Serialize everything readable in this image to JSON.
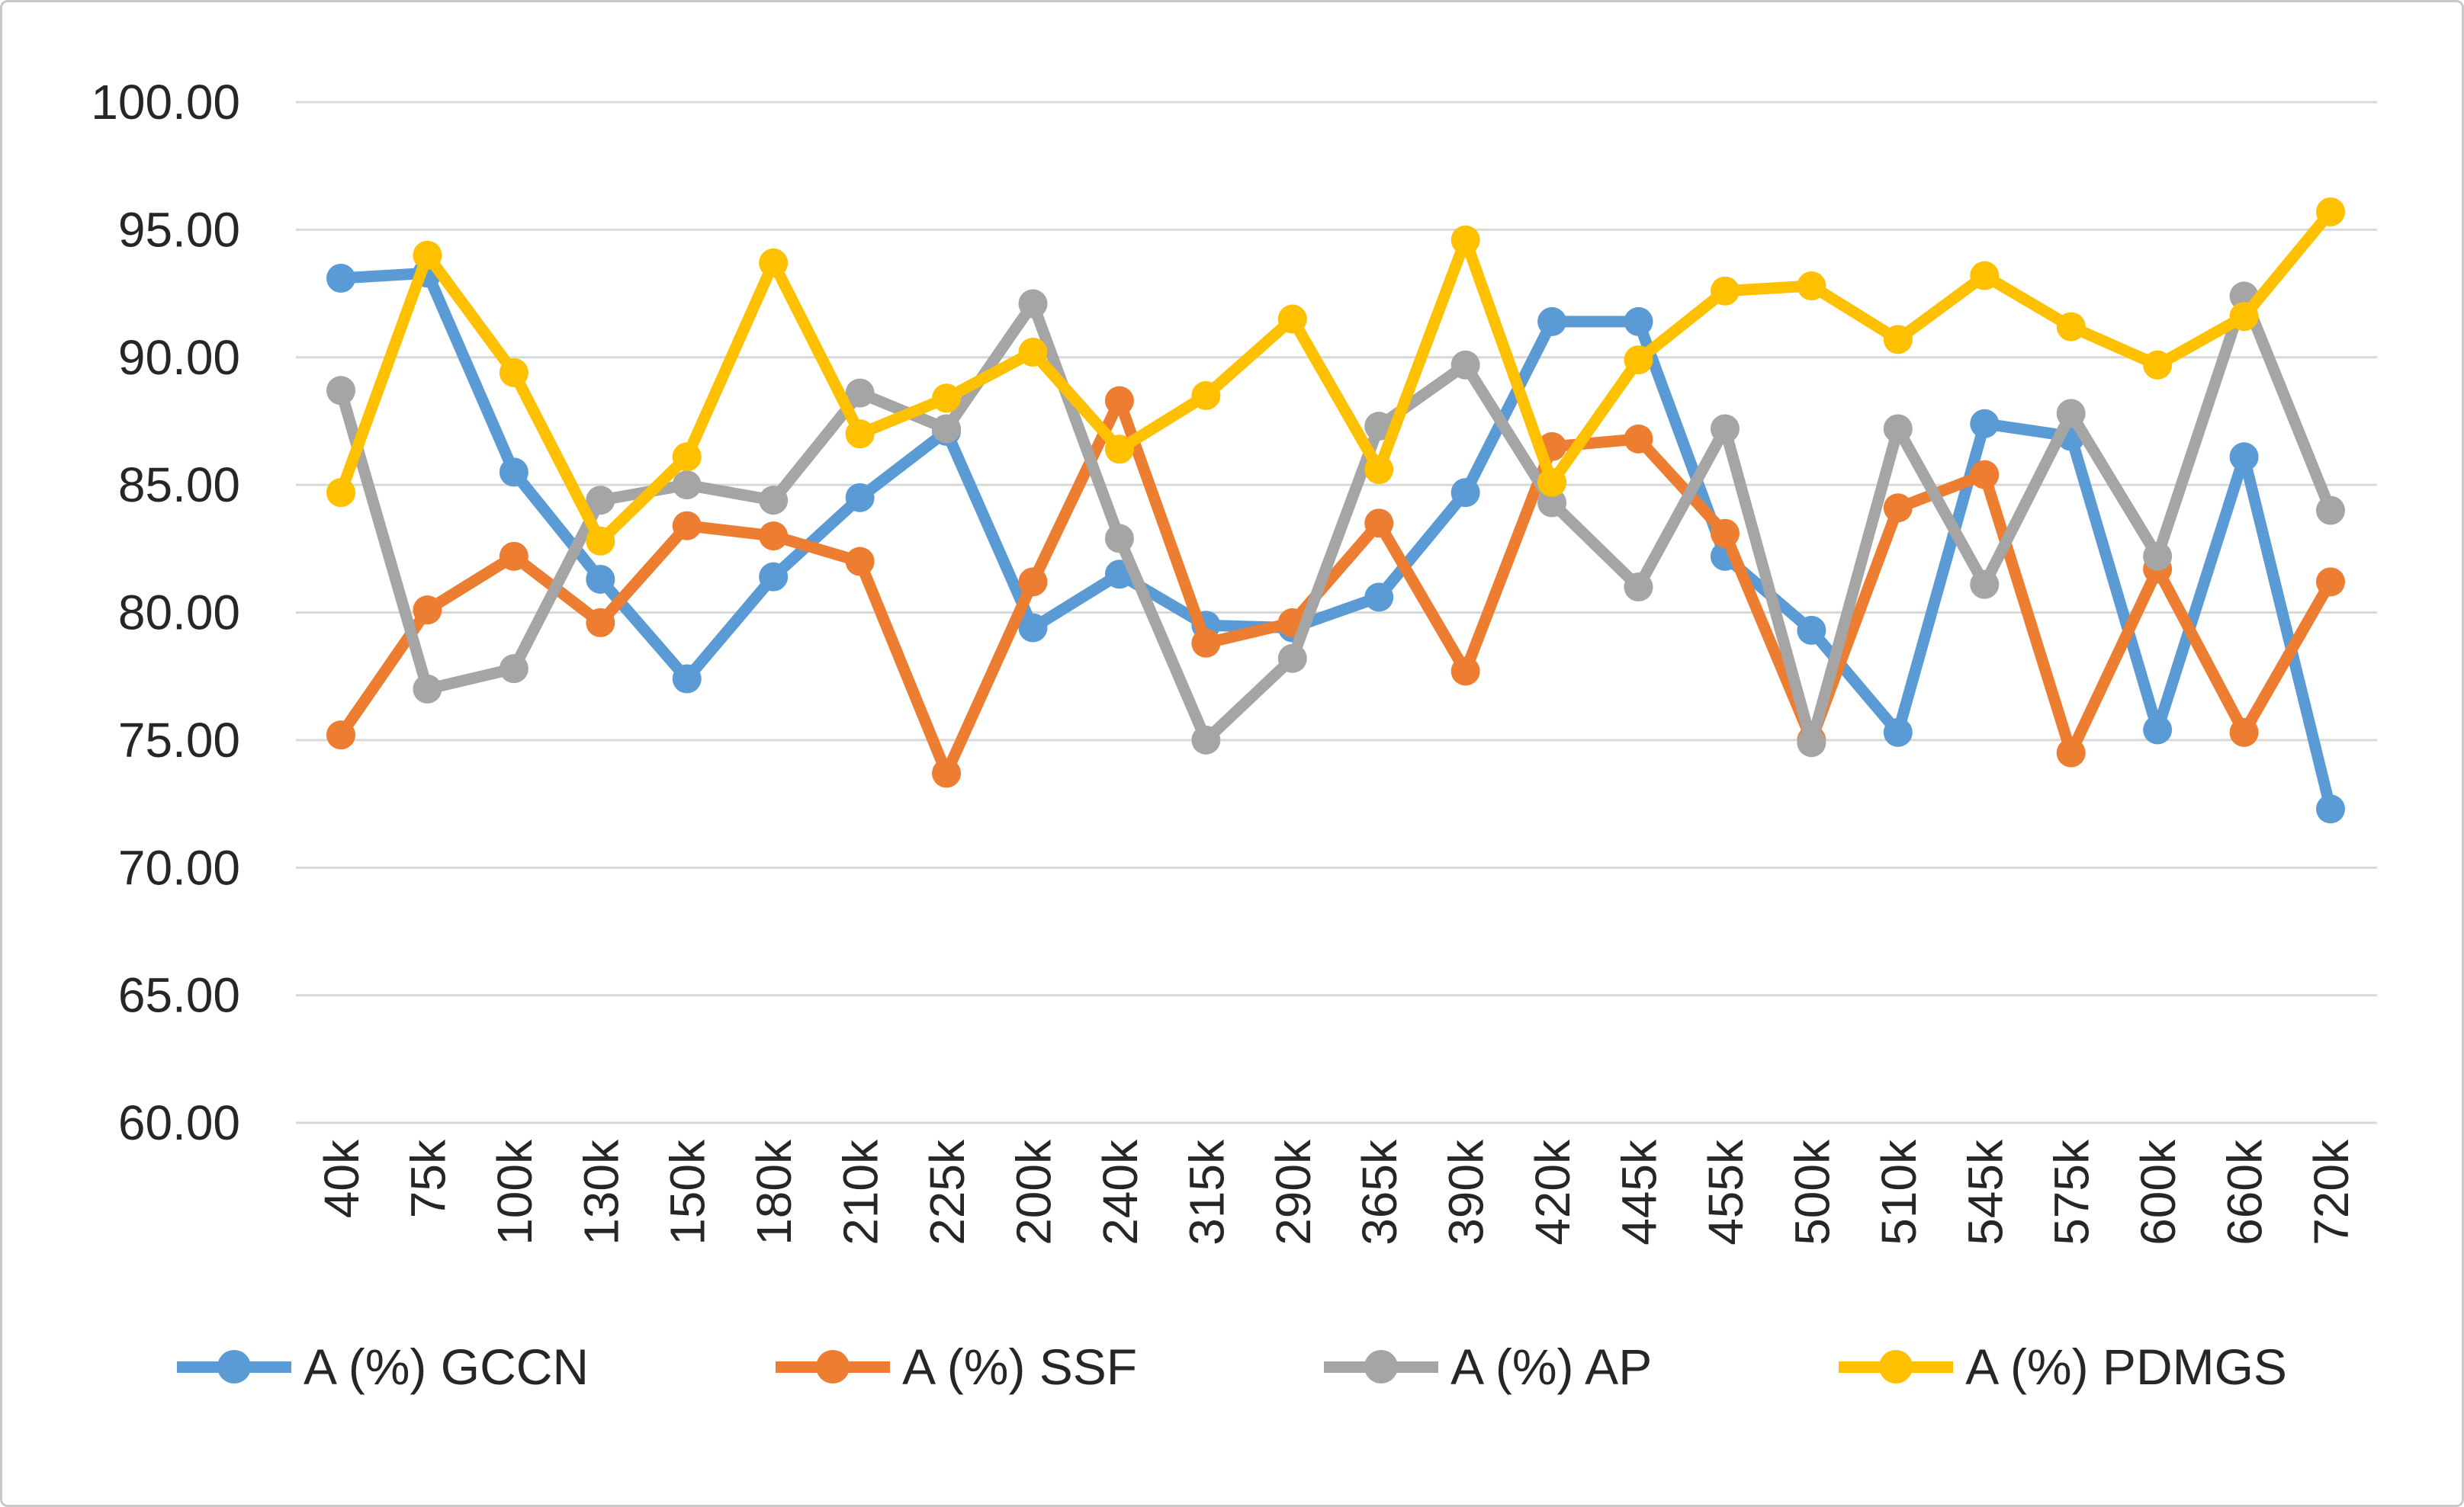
{
  "chart_data": {
    "type": "line",
    "title": "",
    "xlabel": "",
    "ylabel": "",
    "categories": [
      "40k",
      "75k",
      "100k",
      "130k",
      "150k",
      "180k",
      "210k",
      "225k",
      "200k",
      "240k",
      "315k",
      "290k",
      "365k",
      "390k",
      "420k",
      "445k",
      "455k",
      "500k",
      "510k",
      "545k",
      "575k",
      "600k",
      "660k",
      "720k"
    ],
    "series": [
      {
        "key": "gccn",
        "name": "A (%) GCCN",
        "color": "#5B9BD5",
        "values": [
          93.1,
          93.3,
          85.5,
          81.3,
          77.4,
          81.4,
          84.5,
          87.1,
          79.4,
          81.5,
          79.5,
          79.4,
          80.6,
          84.7,
          91.4,
          91.4,
          82.2,
          79.3,
          75.3,
          87.4,
          86.9,
          75.4,
          86.1,
          72.3
        ]
      },
      {
        "key": "ssf",
        "name": "A (%) SSF",
        "color": "#ED7D31",
        "values": [
          75.2,
          80.1,
          82.2,
          79.6,
          83.4,
          83.0,
          82.0,
          73.7,
          81.2,
          88.3,
          78.8,
          79.6,
          83.5,
          77.7,
          86.5,
          86.8,
          83.1,
          75.0,
          84.1,
          85.4,
          74.5,
          81.7,
          75.3,
          81.2
        ]
      },
      {
        "key": "ap",
        "name": "A (%) AP",
        "color": "#A5A5A5",
        "values": [
          88.7,
          77.0,
          77.8,
          84.4,
          85.0,
          84.4,
          88.6,
          87.2,
          92.1,
          82.9,
          75.0,
          78.2,
          87.3,
          89.7,
          84.3,
          81.0,
          87.2,
          74.9,
          87.2,
          81.1,
          87.8,
          82.2,
          92.4,
          84.0
        ]
      },
      {
        "key": "pdmgs",
        "name": "A (%) PDMGS",
        "color": "#FFC000",
        "values": [
          84.7,
          94.0,
          89.4,
          82.8,
          86.1,
          93.7,
          87.0,
          88.4,
          90.2,
          86.4,
          88.5,
          91.5,
          85.6,
          94.6,
          85.1,
          89.9,
          92.6,
          92.8,
          90.7,
          93.2,
          91.2,
          89.7,
          91.6,
          95.7
        ]
      }
    ],
    "ylim": [
      60,
      100
    ],
    "y_tick_step": 5,
    "y_tick_labels": [
      "100.00",
      "95.00",
      "90.00",
      "85.00",
      "80.00",
      "75.00",
      "70.00",
      "65.00",
      "60.00"
    ],
    "grid": true,
    "gridline_color": "#D9D9D9",
    "axis_text_color": "#262626",
    "legend_position": "bottom"
  }
}
